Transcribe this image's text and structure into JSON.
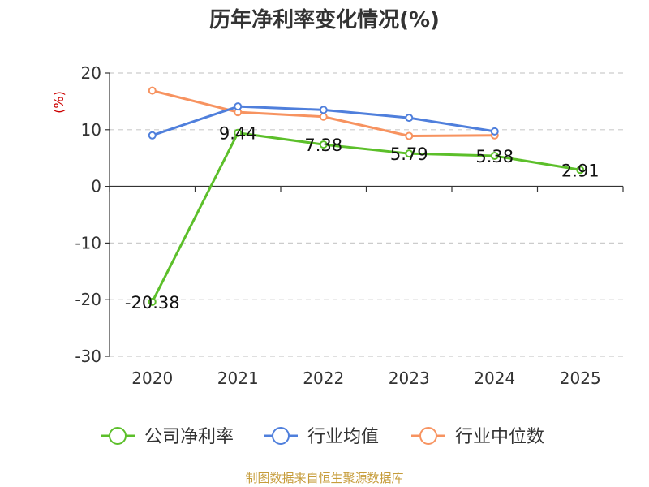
{
  "chart_data": {
    "type": "line",
    "title": "历年净利率变化情况(%)",
    "ylabel": "(%)",
    "categories": [
      "2020",
      "2021",
      "2022",
      "2023",
      "2024",
      "2025"
    ],
    "ylim": [
      -30,
      20
    ],
    "yticks": [
      20,
      10,
      0,
      -10,
      -20,
      -30
    ],
    "grid": true,
    "legend_position": "bottom",
    "series": [
      {
        "name": "公司净利率",
        "color": "#5cbf2a",
        "values": [
          -20.38,
          9.44,
          7.38,
          5.79,
          5.38,
          2.91
        ],
        "labels": [
          "-20.38",
          "9.44",
          "7.38",
          "5.79",
          "5.38",
          "2.91"
        ]
      },
      {
        "name": "行业均值",
        "color": "#4f7fdc",
        "values": [
          9.0,
          14.1,
          13.5,
          12.1,
          9.7,
          null
        ]
      },
      {
        "name": "行业中位数",
        "color": "#f79360",
        "values": [
          16.9,
          13.1,
          12.3,
          8.9,
          9.0,
          null
        ]
      }
    ]
  },
  "source": "制图数据来自恒生聚源数据库"
}
